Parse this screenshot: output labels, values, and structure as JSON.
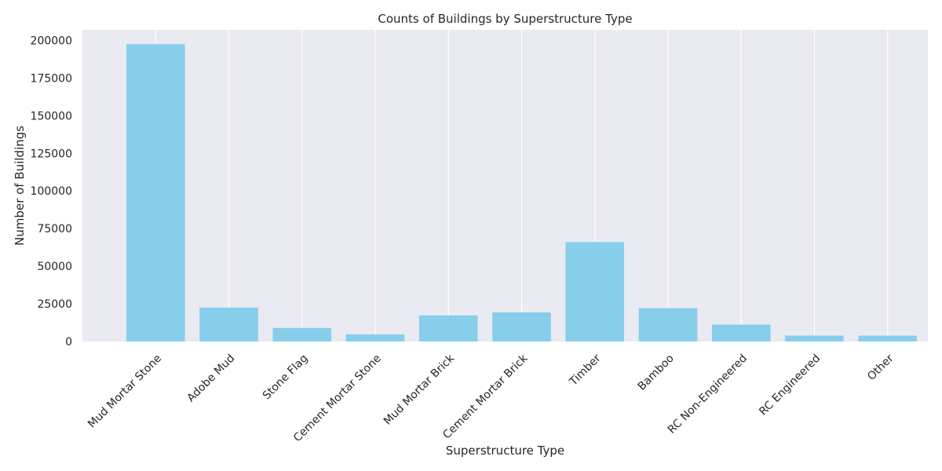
{
  "chart_data": {
    "type": "bar",
    "title": "Counts of Buildings by Superstructure Type",
    "xlabel": "Superstructure Type",
    "ylabel": "Number of Buildings",
    "categories": [
      "Mud Mortar Stone",
      "Adobe Mud",
      "Stone Flag",
      "Cement Mortar Stone",
      "Mud Mortar Brick",
      "Cement Mortar Brick",
      "Timber",
      "Bamboo",
      "RC Non-Engineered",
      "RC Engineered",
      "Other"
    ],
    "values": [
      197500,
      22500,
      9000,
      4700,
      17300,
      19300,
      66000,
      22100,
      11200,
      3900,
      3900
    ],
    "ylim": [
      0,
      207000
    ],
    "yticks": [
      0,
      25000,
      50000,
      75000,
      100000,
      125000,
      150000,
      175000,
      200000
    ],
    "ytick_labels": [
      "0",
      "25000",
      "50000",
      "75000",
      "100000",
      "125000",
      "150000",
      "175000",
      "200000"
    ],
    "grid": true,
    "bar_color": "#87CEEB",
    "background_color": "#EAEAF2",
    "grid_color": "#FFFFFF"
  }
}
